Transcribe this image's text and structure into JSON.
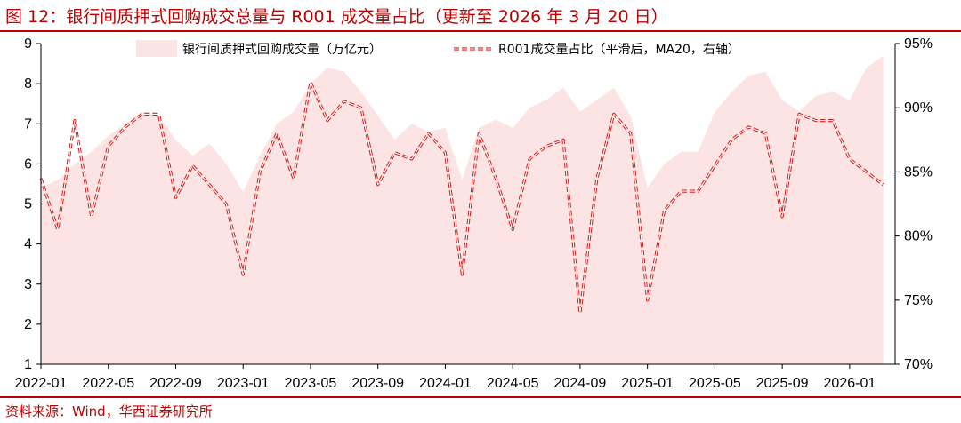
{
  "figure": {
    "title": "图 12：银行间质押式回购成交总量与 R001 成交量占比（更新至 2026 年 3 月 20 日）",
    "source": "资料来源：Wind，华西证券研究所"
  },
  "colors": {
    "accent": "#c00000",
    "area_fill": "#fce4e4",
    "line": "#d42020"
  },
  "chart_data": {
    "type": "area",
    "series": [
      {
        "name": "银行间质押式回购成交量（万亿元）",
        "type": "area",
        "axis": "left",
        "x": [
          "2022-01",
          "2022-02",
          "2022-03",
          "2022-04",
          "2022-05",
          "2022-06",
          "2022-07",
          "2022-08",
          "2022-09",
          "2022-10",
          "2022-11",
          "2022-12",
          "2023-01",
          "2023-02",
          "2023-03",
          "2023-04",
          "2023-05",
          "2023-06",
          "2023-07",
          "2023-08",
          "2023-09",
          "2023-10",
          "2023-11",
          "2023-12",
          "2024-01",
          "2024-02",
          "2024-03",
          "2024-04",
          "2024-05",
          "2024-06",
          "2024-07",
          "2024-08",
          "2024-09",
          "2024-10",
          "2024-11",
          "2024-12",
          "2025-01",
          "2025-02",
          "2025-03",
          "2025-04",
          "2025-05",
          "2025-06",
          "2025-07",
          "2025-08",
          "2025-09",
          "2025-10",
          "2025-11",
          "2025-12",
          "2026-01",
          "2026-02",
          "2026-03"
        ],
        "values": [
          5.4,
          5.6,
          6.0,
          6.3,
          6.7,
          7.0,
          7.3,
          7.2,
          6.6,
          6.2,
          6.5,
          6.0,
          5.3,
          6.2,
          7.0,
          7.3,
          8.0,
          8.4,
          8.3,
          7.8,
          7.2,
          6.6,
          7.0,
          6.8,
          6.9,
          5.6,
          6.9,
          7.1,
          6.9,
          7.4,
          7.6,
          7.9,
          7.3,
          7.6,
          7.9,
          7.2,
          5.4,
          6.0,
          6.3,
          6.3,
          7.3,
          7.8,
          8.2,
          8.3,
          7.6,
          7.3,
          7.7,
          7.8,
          7.6,
          8.4,
          8.7
        ]
      },
      {
        "name": "R001成交量占比（平滑后，MA20，右轴）",
        "type": "line",
        "axis": "right",
        "x": [
          "2022-01",
          "2022-02",
          "2022-03",
          "2022-04",
          "2022-05",
          "2022-06",
          "2022-07",
          "2022-08",
          "2022-09",
          "2022-10",
          "2022-11",
          "2022-12",
          "2023-01",
          "2023-02",
          "2023-03",
          "2023-04",
          "2023-05",
          "2023-06",
          "2023-07",
          "2023-08",
          "2023-09",
          "2023-10",
          "2023-11",
          "2023-12",
          "2024-01",
          "2024-02",
          "2024-03",
          "2024-04",
          "2024-05",
          "2024-06",
          "2024-07",
          "2024-08",
          "2024-09",
          "2024-10",
          "2024-11",
          "2024-12",
          "2025-01",
          "2025-02",
          "2025-03",
          "2025-04",
          "2025-05",
          "2025-06",
          "2025-07",
          "2025-08",
          "2025-09",
          "2025-10",
          "2025-11",
          "2025-12",
          "2026-01",
          "2026-02",
          "2026-03"
        ],
        "values": [
          84.5,
          80.5,
          89.0,
          81.5,
          87.0,
          88.5,
          89.5,
          89.5,
          83.0,
          85.5,
          84.0,
          82.5,
          77.0,
          85.0,
          88.0,
          84.5,
          92.0,
          89.0,
          90.5,
          90.0,
          84.0,
          86.5,
          86.0,
          88.0,
          86.5,
          77.0,
          88.0,
          84.5,
          80.5,
          86.0,
          87.0,
          87.5,
          74.0,
          84.5,
          89.5,
          88.0,
          75.0,
          82.0,
          83.5,
          83.5,
          85.5,
          87.5,
          88.5,
          88.0,
          81.5,
          89.5,
          89.0,
          89.0,
          86.0,
          85.0,
          84.0
        ]
      }
    ],
    "y_left": {
      "ticks": [
        "1",
        "2",
        "3",
        "4",
        "5",
        "6",
        "7",
        "8",
        "9"
      ],
      "range": [
        1,
        9
      ]
    },
    "y_right": {
      "ticks": [
        "70%",
        "75%",
        "80%",
        "85%",
        "90%",
        "95%"
      ],
      "range": [
        70,
        95
      ]
    },
    "x_ticks": [
      "2022-01",
      "2022-05",
      "2022-09",
      "2023-01",
      "2023-05",
      "2023-09",
      "2024-01",
      "2024-05",
      "2024-09",
      "2025-01",
      "2025-05",
      "2025-09",
      "2026-01"
    ],
    "legend": "top",
    "grid": false
  }
}
